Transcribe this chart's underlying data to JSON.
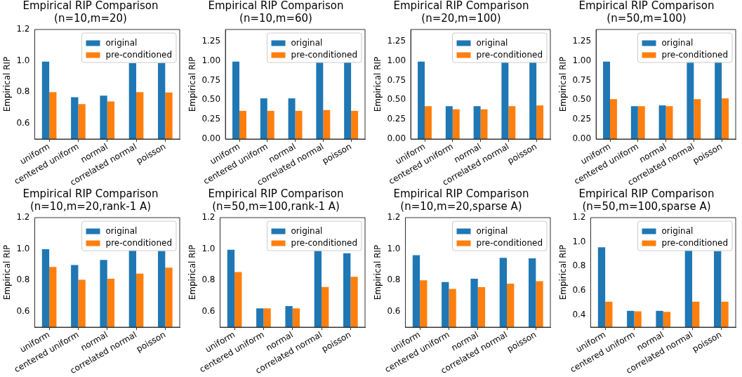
{
  "chart_data": [
    {
      "type": "bar",
      "title": "Empirical RIP Comparison",
      "subtitle": "(n=10,m=20)",
      "ylabel": "Empirical RIP",
      "categories": [
        "uniform",
        "centered uniform",
        "normal",
        "correlated normal",
        "poisson"
      ],
      "series": [
        {
          "name": "original",
          "color": "#1f77b4",
          "values": [
            0.995,
            0.767,
            0.777,
            0.985,
            0.986
          ]
        },
        {
          "name": "pre-conditioned",
          "color": "#ff7f0e",
          "values": [
            0.8,
            0.723,
            0.74,
            0.8,
            0.797
          ]
        }
      ],
      "ylim": [
        0.5,
        1.2
      ],
      "yticks": [
        {
          "value": 0.6,
          "label": "0.6"
        },
        {
          "value": 0.8,
          "label": "0.8"
        },
        {
          "value": 1.0,
          "label": "1.0"
        },
        {
          "value": 1.2,
          "label": "1.2"
        }
      ],
      "grid": false,
      "legend": "top right"
    },
    {
      "type": "bar",
      "title": "Empirical RIP Comparison",
      "subtitle": "(n=10,m=60)",
      "ylabel": "Empirical RIP",
      "categories": [
        "uniform",
        "centered uniform",
        "normal",
        "correlated normal",
        "poisson"
      ],
      "series": [
        {
          "name": "original",
          "color": "#1f77b4",
          "values": [
            0.99,
            0.52,
            0.52,
            0.98,
            0.98
          ]
        },
        {
          "name": "pre-conditioned",
          "color": "#ff7f0e",
          "values": [
            0.36,
            0.36,
            0.36,
            0.37,
            0.36
          ]
        }
      ],
      "ylim": [
        0,
        1.4
      ],
      "yticks": [
        {
          "value": 0,
          "label": "0.00"
        },
        {
          "value": 0.25,
          "label": "0.25"
        },
        {
          "value": 0.5,
          "label": "0.50"
        },
        {
          "value": 0.75,
          "label": "0.75"
        },
        {
          "value": 1.0,
          "label": "1.00"
        },
        {
          "value": 1.25,
          "label": "1.25"
        }
      ],
      "grid": false,
      "legend": "top right"
    },
    {
      "type": "bar",
      "title": "Empirical RIP Comparison",
      "subtitle": "(n=20,m=100)",
      "ylabel": "Empirical RIP",
      "categories": [
        "uniform",
        "centered uniform",
        "normal",
        "correlated normal",
        "poisson"
      ],
      "series": [
        {
          "name": "original",
          "color": "#1f77b4",
          "values": [
            0.99,
            0.42,
            0.42,
            0.98,
            0.98
          ]
        },
        {
          "name": "pre-conditioned",
          "color": "#ff7f0e",
          "values": [
            0.42,
            0.38,
            0.38,
            0.42,
            0.43
          ]
        }
      ],
      "ylim": [
        0,
        1.4
      ],
      "yticks": [
        {
          "value": 0,
          "label": "0.00"
        },
        {
          "value": 0.25,
          "label": "0.25"
        },
        {
          "value": 0.5,
          "label": "0.50"
        },
        {
          "value": 0.75,
          "label": "0.75"
        },
        {
          "value": 1.0,
          "label": "1.00"
        },
        {
          "value": 1.25,
          "label": "1.25"
        }
      ],
      "grid": false,
      "legend": "top right"
    },
    {
      "type": "bar",
      "title": "Empirical RIP Comparison",
      "subtitle": "(n=50,m=100)",
      "ylabel": "Empirical RIP",
      "categories": [
        "uniform",
        "centered uniform",
        "normal",
        "correlated normal",
        "poisson"
      ],
      "series": [
        {
          "name": "original",
          "color": "#1f77b4",
          "values": [
            0.99,
            0.42,
            0.43,
            0.99,
            0.99
          ]
        },
        {
          "name": "pre-conditioned",
          "color": "#ff7f0e",
          "values": [
            0.51,
            0.42,
            0.42,
            0.51,
            0.52
          ]
        }
      ],
      "ylim": [
        0,
        1.4
      ],
      "yticks": [
        {
          "value": 0,
          "label": "0.00"
        },
        {
          "value": 0.25,
          "label": "0.25"
        },
        {
          "value": 0.5,
          "label": "0.50"
        },
        {
          "value": 0.75,
          "label": "0.75"
        },
        {
          "value": 1.0,
          "label": "1.00"
        },
        {
          "value": 1.25,
          "label": "1.25"
        }
      ],
      "grid": false,
      "legend": "top right"
    },
    {
      "type": "bar",
      "title": "Empirical RIP Comparison",
      "subtitle": "(n=10,m=20,rank-1 A)",
      "ylabel": "Empirical RIP",
      "categories": [
        "uniform",
        "centered uniform",
        "normal",
        "correlated normal",
        "poisson"
      ],
      "series": [
        {
          "name": "original",
          "color": "#1f77b4",
          "values": [
            0.998,
            0.897,
            0.93,
            0.99,
            0.987
          ]
        },
        {
          "name": "pre-conditioned",
          "color": "#ff7f0e",
          "values": [
            0.885,
            0.803,
            0.81,
            0.842,
            0.88
          ]
        }
      ],
      "ylim": [
        0.5,
        1.2
      ],
      "yticks": [
        {
          "value": 0.6,
          "label": "0.6"
        },
        {
          "value": 0.8,
          "label": "0.8"
        },
        {
          "value": 1.0,
          "label": "1.0"
        },
        {
          "value": 1.2,
          "label": "1.2"
        }
      ],
      "grid": false,
      "legend": "top right"
    },
    {
      "type": "bar",
      "title": "Empirical RIP Comparison",
      "subtitle": "(n=50,m=100,rank-1 A)",
      "ylabel": "Empirical RIP",
      "categories": [
        "uniform",
        "centered uniform",
        "normal",
        "correlated normal",
        "poisson"
      ],
      "series": [
        {
          "name": "original",
          "color": "#1f77b4",
          "values": [
            0.995,
            0.62,
            0.635,
            0.987,
            0.972
          ]
        },
        {
          "name": "pre-conditioned",
          "color": "#ff7f0e",
          "values": [
            0.852,
            0.62,
            0.62,
            0.757,
            0.822
          ]
        }
      ],
      "ylim": [
        0.5,
        1.2
      ],
      "yticks": [
        {
          "value": 0.6,
          "label": "0.6"
        },
        {
          "value": 0.8,
          "label": "0.8"
        },
        {
          "value": 1.0,
          "label": "1.0"
        },
        {
          "value": 1.2,
          "label": "1.2"
        }
      ],
      "grid": false,
      "legend": "top right"
    },
    {
      "type": "bar",
      "title": "Empirical RIP Comparison",
      "subtitle": "(n=10,m=20,sparse A)",
      "ylabel": "Empirical RIP",
      "categories": [
        "uniform",
        "centered uniform",
        "normal",
        "correlated normal",
        "poisson"
      ],
      "series": [
        {
          "name": "original",
          "color": "#1f77b4",
          "values": [
            0.96,
            0.788,
            0.81,
            0.943,
            0.94
          ]
        },
        {
          "name": "pre-conditioned",
          "color": "#ff7f0e",
          "values": [
            0.8,
            0.745,
            0.756,
            0.778,
            0.794
          ]
        }
      ],
      "ylim": [
        0.5,
        1.2
      ],
      "yticks": [
        {
          "value": 0.6,
          "label": "0.6"
        },
        {
          "value": 0.8,
          "label": "0.8"
        },
        {
          "value": 1.0,
          "label": "1.0"
        },
        {
          "value": 1.2,
          "label": "1.2"
        }
      ],
      "grid": false,
      "legend": "top right"
    },
    {
      "type": "bar",
      "title": "Empirical RIP Comparison",
      "subtitle": "(n=50,m=100,sparse A)",
      "ylabel": "Empirical RIP",
      "categories": [
        "uniform",
        "centered uniform",
        "normal",
        "correlated normal",
        "poisson"
      ],
      "series": [
        {
          "name": "original",
          "color": "#1f77b4",
          "values": [
            0.957,
            0.435,
            0.435,
            0.93,
            0.925
          ]
        },
        {
          "name": "pre-conditioned",
          "color": "#ff7f0e",
          "values": [
            0.51,
            0.43,
            0.425,
            0.51,
            0.51
          ]
        }
      ],
      "ylim": [
        0.3,
        1.2
      ],
      "yticks": [
        {
          "value": 0.4,
          "label": "0.4"
        },
        {
          "value": 0.6,
          "label": "0.6"
        },
        {
          "value": 0.8,
          "label": "0.8"
        },
        {
          "value": 1.0,
          "label": "1.0"
        },
        {
          "value": 1.2,
          "label": "1.2"
        }
      ],
      "grid": false,
      "legend": "top right"
    }
  ]
}
